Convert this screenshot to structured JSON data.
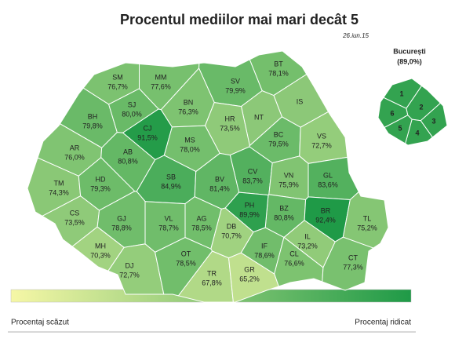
{
  "chart_data": {
    "type": "map",
    "title": "Procentul mediilor mai mari decât 5",
    "date": "26.iun.15",
    "regions": {
      "names": [
        "SM",
        "MM",
        "BT",
        "SV",
        "IS",
        "BH",
        "SJ",
        "BN",
        "NT",
        "CJ",
        "HR",
        "BC",
        "VS",
        "AR",
        "MS",
        "AB",
        "CV",
        "VN",
        "GL",
        "TM",
        "HD",
        "SB",
        "BV",
        "BZ",
        "BR",
        "PH",
        "CS",
        "GJ",
        "VL",
        "AG",
        "DB",
        "TL",
        "MH",
        "IL",
        "DJ",
        "OT",
        "IF",
        "CL",
        "CT",
        "TR",
        "GR"
      ],
      "values": [
        76.7,
        77.6,
        78.1,
        79.9,
        null,
        79.8,
        80.0,
        76.3,
        null,
        91.5,
        73.5,
        79.5,
        72.7,
        76.0,
        78.0,
        80.8,
        83.7,
        75.9,
        83.6,
        74.3,
        79.3,
        84.9,
        81.4,
        80.8,
        92.4,
        89.9,
        73.5,
        78.8,
        78.7,
        78.5,
        70.7,
        75.2,
        70.3,
        73.2,
        72.7,
        78.5,
        78.6,
        76.6,
        77.3,
        67.8,
        65.2
      ],
      "value_labels": [
        "76,7%",
        "77,6%",
        "78,1%",
        "79,9%",
        null,
        "79,8%",
        "80,0%",
        "76,3%",
        null,
        "91,5%",
        "73,5%",
        "79,5%",
        "72,7%",
        "76,0%",
        "78,0%",
        "80,8%",
        "83,7%",
        "75,9%",
        "83,6%",
        "74,3%",
        "79,3%",
        "84,9%",
        "81,4%",
        "80,8%",
        "92,4%",
        "89,9%",
        "73,5%",
        "78,8%",
        "78,7%",
        "78,5%",
        "70,7%",
        "75,2%",
        "70,3%",
        "73,2%",
        "72,7%",
        "78,5%",
        "78,6%",
        "76,6%",
        "77,3%",
        "67,8%",
        "65,2%"
      ]
    },
    "inset": {
      "title": "București",
      "value": 89.0,
      "value_label": "(89,0%)",
      "sectors": [
        "1",
        "2",
        "3",
        "4",
        "5",
        "6"
      ]
    },
    "legend": {
      "low_label": "Procentaj scăzut",
      "high_label": "Procentaj ridicat",
      "low_color": "#f6f7a6",
      "high_color": "#1f9a47"
    }
  }
}
